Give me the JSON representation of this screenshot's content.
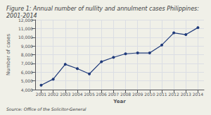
{
  "chart_data": {
    "type": "line",
    "title": "Figure 1: Annual number of nullity and annulment cases Philippines: 2001-2014",
    "source": "Source: Office of the Solicitor-General",
    "xlabel": "Year",
    "ylabel": "Number of cases",
    "x": [
      2001,
      2002,
      2003,
      2004,
      2005,
      2006,
      2007,
      2008,
      2009,
      2010,
      2011,
      2012,
      2013,
      2014
    ],
    "values": [
      4500,
      5200,
      6900,
      6400,
      5800,
      7200,
      7700,
      8100,
      8200,
      8200,
      9100,
      10500,
      10300,
      11100
    ],
    "color": "#1F3A7A",
    "marker": "circle",
    "xlim": [
      2000.5,
      2014.5
    ],
    "xticks": [
      2001,
      2002,
      2003,
      2004,
      2005,
      2006,
      2007,
      2008,
      2009,
      2010,
      2011,
      2012,
      2013,
      2014
    ],
    "ylim": [
      4000,
      12000
    ],
    "yticks": [
      {
        "value": 4000,
        "label": "4,000"
      },
      {
        "value": 5000,
        "label": "5,000"
      },
      {
        "value": 6000,
        "label": "6,000"
      },
      {
        "value": 7000,
        "label": "7,000"
      },
      {
        "value": 8000,
        "label": "8,000"
      },
      {
        "value": 9000,
        "label": "9,000"
      },
      {
        "value": 10000,
        "label": "10,000"
      },
      {
        "value": 11000,
        "label": "11,000"
      },
      {
        "value": 12000,
        "label": "12,000"
      }
    ],
    "grid": true
  }
}
